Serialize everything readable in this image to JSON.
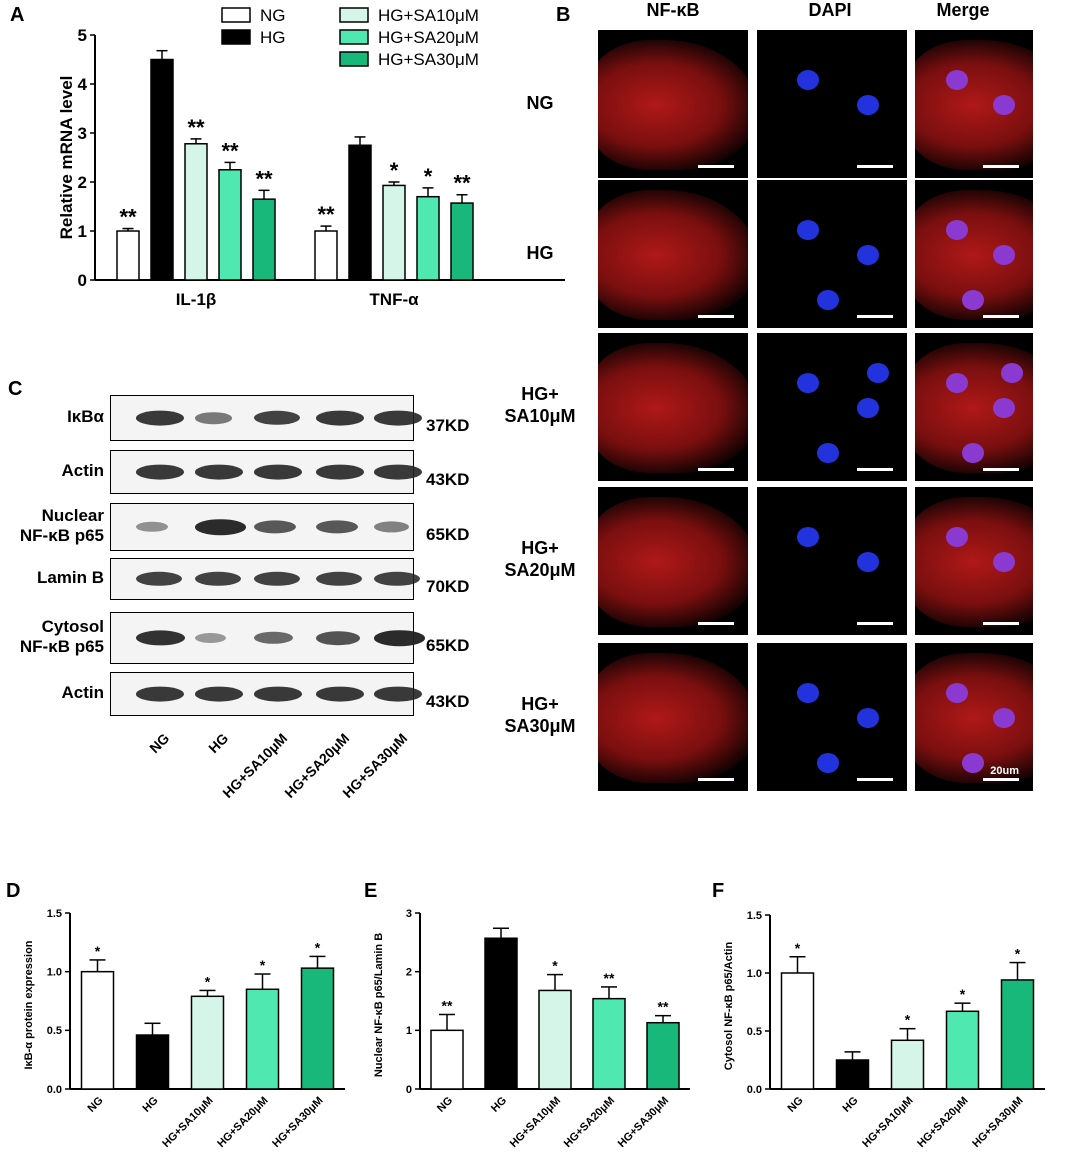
{
  "panels": {
    "A": "A",
    "B": "B",
    "C": "C",
    "D": "D",
    "E": "E",
    "F": "F"
  },
  "colors": {
    "NG": "#ffffff",
    "HG": "#000000",
    "SA10": "#d4f5e8",
    "SA20": "#4ee8b0",
    "SA30": "#17b87a"
  },
  "chart_data": [
    {
      "id": "A",
      "type": "bar",
      "ylabel": "Relative mRNA level",
      "ylim": [
        0,
        5
      ],
      "yticks": [
        0,
        1,
        2,
        3,
        4,
        5
      ],
      "categories": [
        "IL-1β",
        "TNF-α"
      ],
      "legend": [
        "NG",
        "HG",
        "HG+SA10μM",
        "HG+SA20μM",
        "HG+SA30μM"
      ],
      "series": [
        {
          "name": "NG",
          "values": [
            1.0,
            1.0
          ],
          "errors": [
            0.05,
            0.1
          ],
          "sig": [
            "**",
            "**"
          ]
        },
        {
          "name": "HG",
          "values": [
            4.5,
            2.75
          ],
          "errors": [
            0.18,
            0.17
          ],
          "sig": [
            "",
            ""
          ]
        },
        {
          "name": "HG+SA10μM",
          "values": [
            2.78,
            1.93
          ],
          "errors": [
            0.1,
            0.07
          ],
          "sig": [
            "**",
            "*"
          ]
        },
        {
          "name": "HG+SA20μM",
          "values": [
            2.25,
            1.7
          ],
          "errors": [
            0.15,
            0.18
          ],
          "sig": [
            "**",
            "*"
          ]
        },
        {
          "name": "HG+SA30μM",
          "values": [
            1.65,
            1.57
          ],
          "errors": [
            0.18,
            0.17
          ],
          "sig": [
            "**",
            "**"
          ]
        }
      ]
    },
    {
      "id": "D",
      "type": "bar",
      "ylabel": "IκB-α protein expression",
      "ylim": [
        0,
        1.5
      ],
      "yticks": [
        "0.0",
        "0.5",
        "1.0",
        "1.5"
      ],
      "categories": [
        "NG",
        "HG",
        "HG+SA10μM",
        "HG+SA20μM",
        "HG+SA30μM"
      ],
      "values": [
        1.0,
        0.46,
        0.79,
        0.85,
        1.03
      ],
      "errors": [
        0.1,
        0.1,
        0.05,
        0.13,
        0.1
      ],
      "sig": [
        "*",
        "",
        "*",
        "*",
        "*"
      ]
    },
    {
      "id": "E",
      "type": "bar",
      "ylabel": "Nuclear NF-κB p65/Lamin B",
      "ylim": [
        0,
        3
      ],
      "yticks": [
        "0",
        "1",
        "2",
        "3"
      ],
      "categories": [
        "NG",
        "HG",
        "HG+SA10μM",
        "HG+SA20μM",
        "HG+SA30μM"
      ],
      "values": [
        1.0,
        2.57,
        1.68,
        1.54,
        1.13
      ],
      "errors": [
        0.27,
        0.17,
        0.27,
        0.2,
        0.12
      ],
      "sig": [
        "**",
        "",
        "*",
        "**",
        "**"
      ]
    },
    {
      "id": "F",
      "type": "bar",
      "ylabel": "Cytosol NF-κB p65/Actin",
      "ylim": [
        0,
        1.5
      ],
      "yticks": [
        "0.0",
        "0.5",
        "1.0",
        "1.5"
      ],
      "categories": [
        "NG",
        "HG",
        "HG+SA10μM",
        "HG+SA20μM",
        "HG+SA30μM"
      ],
      "values": [
        1.0,
        0.25,
        0.42,
        0.67,
        0.94
      ],
      "errors": [
        0.14,
        0.07,
        0.1,
        0.07,
        0.15
      ],
      "sig": [
        "*",
        "",
        "*",
        "*",
        "*"
      ]
    }
  ],
  "micrographs": {
    "columns": [
      "NF-κB",
      "DAPI",
      "Merge"
    ],
    "rows": [
      "NG",
      "HG",
      "HG+\nSA10μM",
      "HG+\nSA20μM",
      "HG+\nSA30μM"
    ],
    "scale_bar": "20um"
  },
  "western_blot": {
    "rows": [
      {
        "label": "IκBα",
        "kd": "37KD",
        "bands": [
          0.85,
          0.45,
          0.8,
          0.85,
          0.85
        ]
      },
      {
        "label": "Actin",
        "kd": "43KD",
        "bands": [
          0.85,
          0.85,
          0.85,
          0.85,
          0.85
        ]
      },
      {
        "label": "Nuclear\nNF-κB p65",
        "kd": "65KD",
        "bands": [
          0.3,
          0.95,
          0.65,
          0.65,
          0.4
        ]
      },
      {
        "label": "Lamin B",
        "kd": "70KD",
        "bands": [
          0.8,
          0.8,
          0.8,
          0.8,
          0.8
        ]
      },
      {
        "label": "Cytosol\nNF-κB p65",
        "kd": "65KD",
        "bands": [
          0.9,
          0.25,
          0.55,
          0.7,
          0.95
        ]
      },
      {
        "label": "Actin",
        "kd": "43KD",
        "bands": [
          0.85,
          0.85,
          0.85,
          0.85,
          0.85
        ]
      }
    ],
    "lanes": [
      "NG",
      "HG",
      "HG+SA10μM",
      "HG+SA20μM",
      "HG+SA30μM"
    ]
  }
}
